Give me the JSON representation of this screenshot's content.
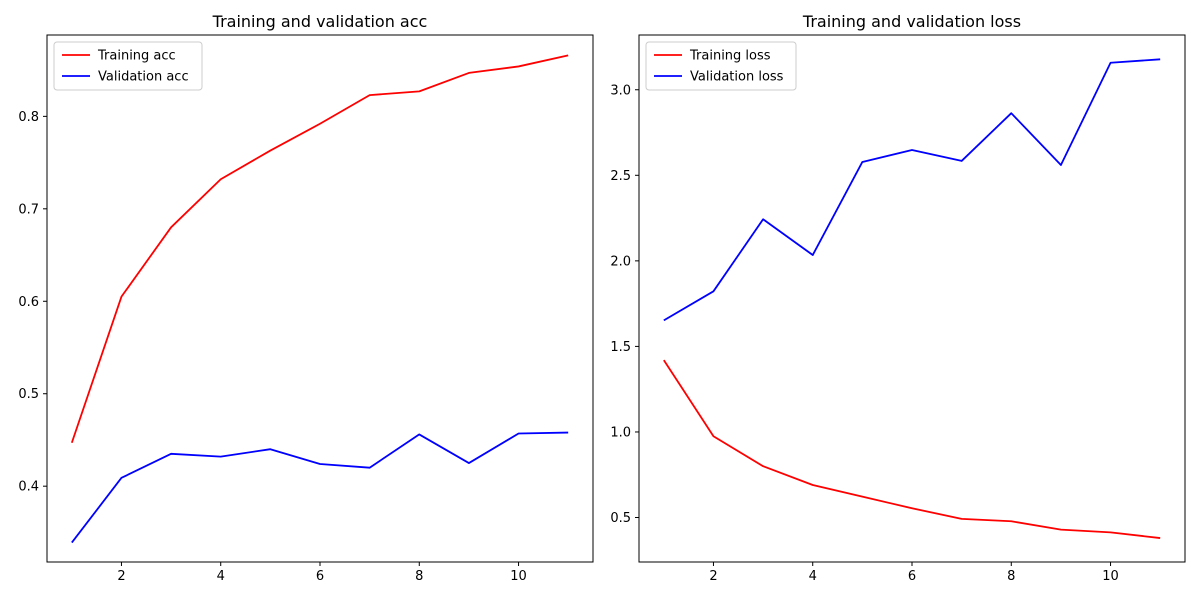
{
  "chart_data": [
    {
      "type": "line",
      "title": "Training and validation acc",
      "xlabel": "",
      "ylabel": "",
      "x": [
        1,
        2,
        3,
        4,
        5,
        6,
        7,
        8,
        9,
        10,
        11
      ],
      "xlim": [
        0.5,
        11.5
      ],
      "ylim": [
        0.318,
        0.888
      ],
      "xticks": [
        2,
        4,
        6,
        8,
        10
      ],
      "yticks": [
        0.4,
        0.5,
        0.6,
        0.7,
        0.8
      ],
      "legend_position": "top-left",
      "series": [
        {
          "name": "Training acc",
          "color": "#ff0000",
          "values": [
            0.447,
            0.605,
            0.68,
            0.732,
            0.763,
            0.792,
            0.823,
            0.827,
            0.847,
            0.854,
            0.866
          ]
        },
        {
          "name": "Validation acc",
          "color": "#0000ff",
          "values": [
            0.339,
            0.409,
            0.435,
            0.432,
            0.44,
            0.424,
            0.42,
            0.456,
            0.425,
            0.457,
            0.458
          ]
        }
      ]
    },
    {
      "type": "line",
      "title": "Training and validation loss",
      "xlabel": "",
      "ylabel": "",
      "x": [
        1,
        2,
        3,
        4,
        5,
        6,
        7,
        8,
        9,
        10,
        11
      ],
      "xlim": [
        0.5,
        11.5
      ],
      "ylim": [
        0.24,
        3.32
      ],
      "xticks": [
        2,
        4,
        6,
        8,
        10
      ],
      "yticks": [
        0.5,
        1.0,
        1.5,
        2.0,
        2.5,
        3.0
      ],
      "legend_position": "top-left",
      "series": [
        {
          "name": "Training loss",
          "color": "#ff0000",
          "values": [
            1.42,
            0.975,
            0.8,
            0.69,
            0.622,
            0.554,
            0.492,
            0.478,
            0.429,
            0.413,
            0.38
          ]
        },
        {
          "name": "Validation loss",
          "color": "#0000ff",
          "values": [
            1.652,
            1.822,
            2.243,
            2.034,
            2.578,
            2.648,
            2.584,
            2.863,
            2.56,
            3.158,
            3.178
          ]
        }
      ]
    }
  ]
}
